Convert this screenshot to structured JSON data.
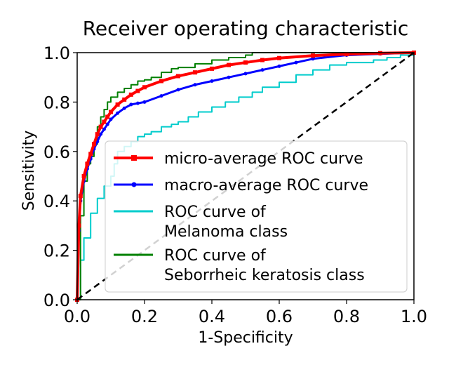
{
  "chart_data": {
    "type": "line",
    "title": "Receiver operating characteristic",
    "xlabel": "1-Specificity",
    "ylabel": "Sensitivity",
    "xlim": [
      0.0,
      1.0
    ],
    "ylim": [
      0.0,
      1.0
    ],
    "xticks": [
      "0.0",
      "0.2",
      "0.4",
      "0.6",
      "0.8",
      "1.0"
    ],
    "yticks": [
      "0.0",
      "0.2",
      "0.4",
      "0.6",
      "0.8",
      "1.0"
    ],
    "legend_position": "lower-right",
    "series": [
      {
        "name": "micro-average ROC curve",
        "legend_lines": [
          "micro-average ROC curve"
        ],
        "color": "#ff0000",
        "style": "solid-thick-square-markers",
        "x": [
          0.0,
          0.005,
          0.01,
          0.02,
          0.03,
          0.04,
          0.05,
          0.06,
          0.07,
          0.08,
          0.09,
          0.1,
          0.12,
          0.14,
          0.16,
          0.18,
          0.2,
          0.25,
          0.3,
          0.35,
          0.4,
          0.45,
          0.5,
          0.55,
          0.6,
          0.7,
          0.8,
          0.9,
          1.0
        ],
        "y": [
          0.0,
          0.3,
          0.42,
          0.5,
          0.55,
          0.59,
          0.63,
          0.67,
          0.7,
          0.72,
          0.74,
          0.76,
          0.79,
          0.81,
          0.83,
          0.845,
          0.86,
          0.885,
          0.905,
          0.92,
          0.935,
          0.95,
          0.96,
          0.97,
          0.978,
          0.988,
          0.994,
          0.998,
          1.0
        ]
      },
      {
        "name": "macro-average ROC curve",
        "legend_lines": [
          "macro-average ROC curve"
        ],
        "color": "#0000ff",
        "style": "solid-thick-star-markers",
        "x": [
          0.0,
          0.005,
          0.01,
          0.02,
          0.03,
          0.04,
          0.05,
          0.06,
          0.07,
          0.08,
          0.09,
          0.1,
          0.12,
          0.14,
          0.16,
          0.18,
          0.2,
          0.25,
          0.3,
          0.35,
          0.4,
          0.45,
          0.5,
          0.55,
          0.6,
          0.65,
          0.7,
          0.8,
          0.9,
          1.0
        ],
        "y": [
          0.0,
          0.28,
          0.4,
          0.48,
          0.53,
          0.57,
          0.61,
          0.64,
          0.67,
          0.69,
          0.71,
          0.73,
          0.755,
          0.775,
          0.79,
          0.795,
          0.8,
          0.825,
          0.85,
          0.87,
          0.885,
          0.9,
          0.915,
          0.93,
          0.945,
          0.96,
          0.975,
          0.99,
          0.995,
          1.0
        ]
      },
      {
        "name": "ROC curve of Melanoma class",
        "legend_lines": [
          "ROC curve of",
          " Melanoma class"
        ],
        "color": "#00cccc",
        "style": "solid-thin-step",
        "x": [
          0.0,
          0.01,
          0.02,
          0.04,
          0.06,
          0.08,
          0.1,
          0.11,
          0.12,
          0.14,
          0.16,
          0.18,
          0.2,
          0.22,
          0.25,
          0.28,
          0.3,
          0.33,
          0.36,
          0.4,
          0.44,
          0.48,
          0.52,
          0.55,
          0.6,
          0.65,
          0.7,
          0.75,
          0.8,
          0.85,
          0.88,
          0.92,
          0.96,
          1.0
        ],
        "y": [
          0.0,
          0.16,
          0.25,
          0.35,
          0.41,
          0.46,
          0.5,
          0.55,
          0.6,
          0.62,
          0.64,
          0.66,
          0.67,
          0.68,
          0.7,
          0.71,
          0.72,
          0.74,
          0.76,
          0.78,
          0.8,
          0.82,
          0.84,
          0.86,
          0.88,
          0.91,
          0.93,
          0.95,
          0.96,
          0.96,
          0.97,
          0.98,
          0.99,
          1.0
        ]
      },
      {
        "name": "ROC curve of Seborrheic keratosis class",
        "legend_lines": [
          "ROC curve of",
          " Seborrheic keratosis class"
        ],
        "color": "#008000",
        "style": "solid-thin-step",
        "x": [
          0.0,
          0.01,
          0.02,
          0.03,
          0.04,
          0.05,
          0.06,
          0.07,
          0.08,
          0.09,
          0.1,
          0.12,
          0.14,
          0.16,
          0.18,
          0.2,
          0.22,
          0.25,
          0.28,
          0.3,
          0.35,
          0.4,
          0.45,
          0.5,
          0.52,
          0.55,
          0.6,
          0.7,
          0.8,
          0.9,
          1.0
        ],
        "y": [
          0.0,
          0.34,
          0.48,
          0.55,
          0.58,
          0.63,
          0.7,
          0.74,
          0.77,
          0.8,
          0.82,
          0.84,
          0.855,
          0.87,
          0.885,
          0.89,
          0.9,
          0.92,
          0.935,
          0.94,
          0.955,
          0.97,
          0.98,
          0.99,
          1.0,
          1.0,
          1.0,
          1.0,
          1.0,
          1.0,
          1.0
        ]
      },
      {
        "name": "chance",
        "legend_lines": [],
        "color": "#000000",
        "style": "dashed",
        "x": [
          0.0,
          1.0
        ],
        "y": [
          0.0,
          1.0
        ]
      }
    ]
  }
}
